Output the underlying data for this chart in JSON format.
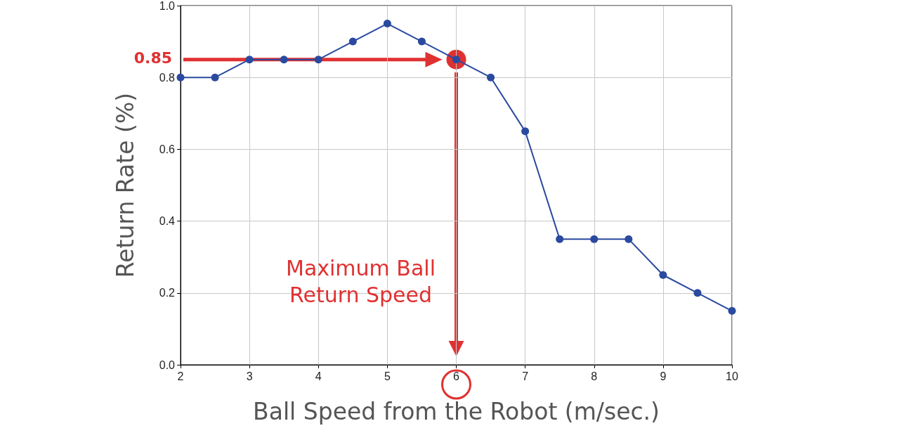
{
  "chart_data": {
    "type": "line",
    "xlabel": "Ball Speed from the Robot (m/sec.)",
    "ylabel": "Return Rate (%)",
    "x": [
      2,
      2.5,
      3,
      3.5,
      4,
      4.5,
      5,
      5.5,
      6,
      6.5,
      7,
      7.5,
      8,
      8.5,
      9,
      9.5,
      10
    ],
    "series": [
      {
        "color": "#2a4aa0",
        "values": [
          0.8,
          0.8,
          0.85,
          0.85,
          0.85,
          0.9,
          0.95,
          0.9,
          0.85,
          0.8,
          0.65,
          0.35,
          0.35,
          0.35,
          0.25,
          0.2,
          0.15
        ]
      }
    ],
    "xlim": [
      2,
      10
    ],
    "xticks": [
      2,
      3,
      4,
      5,
      6,
      7,
      8,
      9,
      10
    ],
    "ylim": [
      0,
      1
    ],
    "yticks": [
      {
        "value": 0,
        "label": "0.0"
      },
      {
        "value": 0.2,
        "label": "0.2"
      },
      {
        "value": 0.4,
        "label": "0.4"
      },
      {
        "value": 0.6,
        "label": "0.6"
      },
      {
        "value": 0.8,
        "label": "0.8"
      },
      {
        "value": 1,
        "label": "1.0"
      }
    ],
    "grid": true,
    "marker": "circle",
    "line_style": "solid",
    "annotations": [
      "0.85",
      "Maximum Ball Return Speed"
    ]
  }
}
